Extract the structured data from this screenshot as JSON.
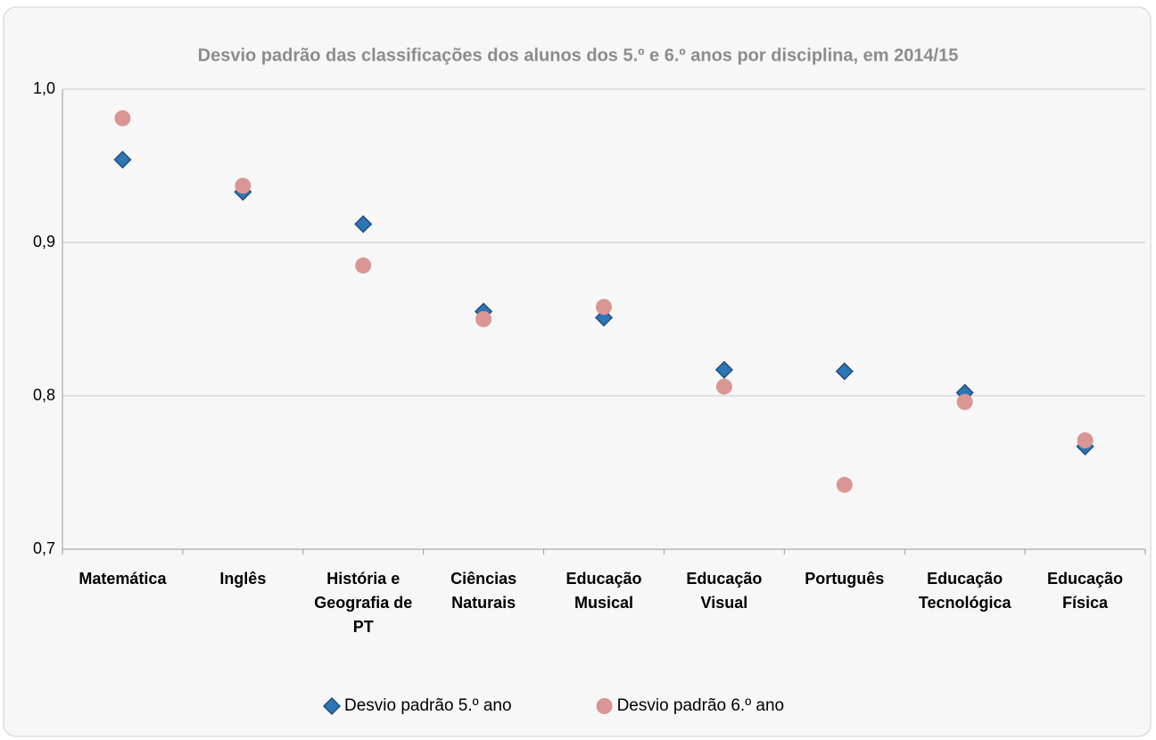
{
  "chart_data": {
    "type": "scatter",
    "title": "Desvio padrão das classificações dos alunos dos 5.º e 6.º anos por disciplina, em 2014/15",
    "categories": [
      "Matemática",
      "Inglês",
      "História e Geografia de PT",
      "Ciências Naturais",
      "Educação Musical",
      "Educação Visual",
      "Português",
      "Educação Tecnológica",
      "Educação Física"
    ],
    "series": [
      {
        "name": "Desvio padrão 5.º ano",
        "color": "#2e75b6",
        "marker": "diamond",
        "values": [
          0.954,
          0.933,
          0.912,
          0.855,
          0.851,
          0.817,
          0.816,
          0.802,
          0.767
        ]
      },
      {
        "name": "Desvio padrão 6.º ano",
        "color": "#d99694",
        "marker": "circle",
        "values": [
          0.981,
          0.937,
          0.885,
          0.85,
          0.858,
          0.806,
          0.742,
          0.796,
          0.771
        ]
      }
    ],
    "ylim": [
      0.7,
      1.0
    ],
    "yticks": [
      {
        "value": 0.7,
        "label": "0,7"
      },
      {
        "value": 0.8,
        "label": "0,8"
      },
      {
        "value": 0.9,
        "label": "0,9"
      },
      {
        "value": 1.0,
        "label": "1,0"
      }
    ],
    "grid": true,
    "legend": "bottom"
  }
}
